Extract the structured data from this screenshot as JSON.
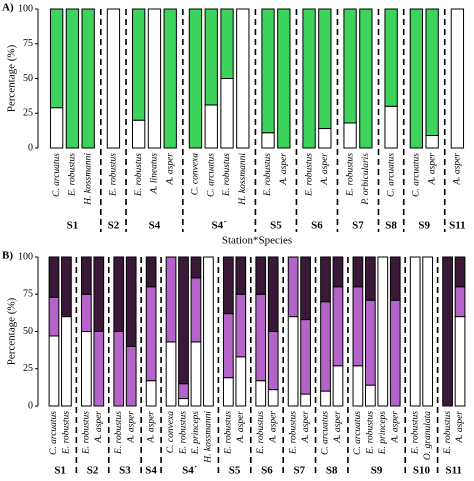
{
  "chart_data": [
    {
      "type": "stacked_bar",
      "panel": "A)",
      "ylabel": "Percentage (%)",
      "xlabel": "Station*Species",
      "ylim": [
        0,
        100
      ],
      "yticks": [
        0,
        25,
        50,
        75,
        100
      ],
      "groups": [
        {
          "label": "S1",
          "categories": [
            "C. arcuatus",
            "E. robustus",
            "H. kossmanni"
          ]
        },
        {
          "label": "S2",
          "categories": [
            "E. robustus"
          ]
        },
        {
          "label": "S4",
          "categories": [
            "E. robustus",
            "A. lineatus",
            "A. asper"
          ]
        },
        {
          "label": "S4´",
          "categories": [
            "C. convexa",
            "C. arcuatus",
            "E. robustus",
            "H. kossmanni"
          ]
        },
        {
          "label": "S5",
          "categories": [
            "E. robustus",
            "A. asper"
          ]
        },
        {
          "label": "S6",
          "categories": [
            "E. robustus",
            "A. asper"
          ]
        },
        {
          "label": "S7",
          "categories": [
            "E. robustus",
            "P. orbicularis"
          ]
        },
        {
          "label": "S8",
          "categories": [
            "C. arcuatus"
          ]
        },
        {
          "label": "S9",
          "categories": [
            "C. arcuatus",
            "A. asper"
          ]
        },
        {
          "label": "S11",
          "categories": [
            "A. asper"
          ]
        }
      ],
      "series": [
        {
          "color": "#ffffff",
          "values": [
            29,
            0,
            0,
            100,
            20,
            100,
            0,
            0,
            31,
            50,
            100,
            11,
            0,
            0,
            14,
            18,
            0,
            30,
            0,
            9,
            100
          ]
        },
        {
          "color": "#3dd35c",
          "values": [
            71,
            100,
            100,
            0,
            80,
            0,
            100,
            100,
            69,
            50,
            0,
            89,
            100,
            100,
            86,
            82,
            100,
            70,
            100,
            91,
            0
          ]
        }
      ]
    },
    {
      "type": "stacked_bar",
      "panel": "B)",
      "ylabel": "Percentage (%)",
      "ylim": [
        0,
        100
      ],
      "yticks": [
        0,
        25,
        50,
        75,
        100
      ],
      "groups": [
        {
          "label": "S1",
          "categories": [
            "C. arcuatus",
            "E. robustus"
          ]
        },
        {
          "label": "S2",
          "categories": [
            "E. robustus",
            "A. asper"
          ]
        },
        {
          "label": "S3",
          "categories": [
            "E. robustus",
            "A. asper"
          ]
        },
        {
          "label": "S4",
          "categories": [
            "A. asper"
          ]
        },
        {
          "label": "S4´",
          "categories": [
            "C. convexa",
            "E. robustus",
            "E. princeps",
            "H. kossmanni"
          ]
        },
        {
          "label": "S5",
          "categories": [
            "E. robustus",
            "A. asper"
          ]
        },
        {
          "label": "S6",
          "categories": [
            "E. robustus",
            "A. asper"
          ]
        },
        {
          "label": "S7",
          "categories": [
            "E. robustus",
            "A. asper"
          ]
        },
        {
          "label": "S8",
          "categories": [
            "C. arcuatus",
            "A. asper"
          ]
        },
        {
          "label": "S9",
          "categories": [
            "C. arcuatus",
            "E. robustus",
            "E. princeps",
            "A. asper"
          ]
        },
        {
          "label": "S10",
          "categories": [
            "E. robustus",
            "O. granulata"
          ]
        },
        {
          "label": "S11",
          "categories": [
            "E. robustus",
            "A. asper"
          ]
        }
      ],
      "series": [
        {
          "color": "#ffffff",
          "values": [
            47,
            60,
            50,
            0,
            0,
            0,
            17,
            43,
            5,
            43,
            100,
            19,
            33,
            17,
            11,
            60,
            8,
            10,
            27,
            27,
            14,
            100,
            0,
            100,
            100,
            0,
            60
          ]
        },
        {
          "color": "#b463c8",
          "values": [
            26,
            0,
            25,
            50,
            50,
            40,
            63,
            57,
            10,
            43,
            0,
            43,
            42,
            58,
            39,
            40,
            50,
            60,
            53,
            53,
            57,
            0,
            71,
            0,
            0,
            0,
            20
          ]
        },
        {
          "color": "#3a1838",
          "values": [
            27,
            40,
            25,
            50,
            50,
            60,
            20,
            0,
            85,
            14,
            0,
            38,
            25,
            25,
            50,
            0,
            42,
            30,
            20,
            20,
            29,
            0,
            29,
            0,
            0,
            100,
            20
          ]
        }
      ]
    }
  ]
}
